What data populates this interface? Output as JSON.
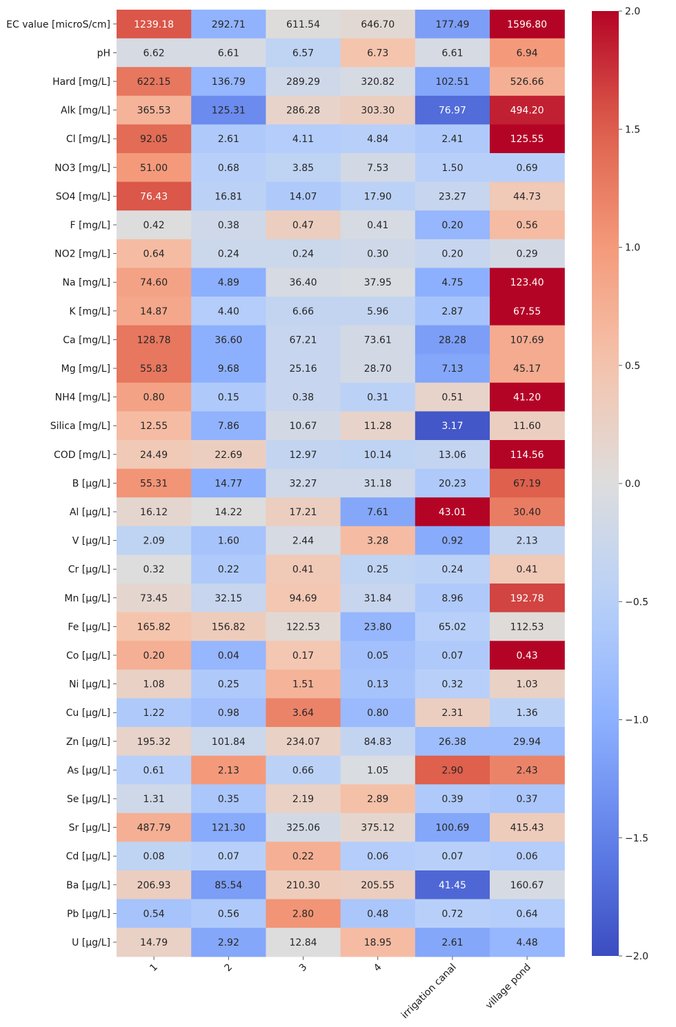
{
  "chart_data": {
    "type": "heatmap",
    "colormap": "coolwarm",
    "colorbar": {
      "vmin": -2.0,
      "vmax": 2.0,
      "ticks": [
        "2.0",
        "1.5",
        "1.0",
        "0.5",
        "0.0",
        "−0.5",
        "−1.0",
        "−1.5",
        "−2.0"
      ]
    },
    "columns": [
      "1",
      "2",
      "3",
      "4",
      "irrigation canal",
      "village pond"
    ],
    "rows": [
      {
        "label": "EC value [microS/cm]",
        "values": [
          "1239.18",
          "292.71",
          "611.54",
          "646.70",
          "177.49",
          "1596.80"
        ],
        "z": [
          1.55,
          -0.95,
          0.02,
          0.1,
          -1.2,
          2.2
        ]
      },
      {
        "label": "pH",
        "values": [
          "6.62",
          "6.61",
          "6.57",
          "6.73",
          "6.61",
          "6.94"
        ],
        "z": [
          -0.1,
          -0.1,
          -0.4,
          0.5,
          -0.1,
          1.0
        ]
      },
      {
        "label": "Hard [mg/L]",
        "values": [
          "622.15",
          "136.79",
          "289.29",
          "320.82",
          "102.51",
          "526.66"
        ],
        "z": [
          1.3,
          -0.9,
          -0.2,
          -0.1,
          -1.1,
          0.75
        ]
      },
      {
        "label": "Alk [mg/L]",
        "values": [
          "365.53",
          "125.31",
          "286.28",
          "303.30",
          "76.97",
          "494.20"
        ],
        "z": [
          0.7,
          -1.4,
          0.2,
          0.3,
          -1.7,
          1.85
        ]
      },
      {
        "label": "Cl [mg/L]",
        "values": [
          "92.05",
          "2.61",
          "4.11",
          "4.84",
          "2.41",
          "125.55"
        ],
        "z": [
          1.4,
          -0.6,
          -0.55,
          -0.5,
          -0.6,
          2.3
        ]
      },
      {
        "label": "NO3 [mg/L]",
        "values": [
          "51.00",
          "0.68",
          "3.85",
          "7.53",
          "1.50",
          "0.69"
        ],
        "z": [
          1.0,
          -0.5,
          -0.4,
          -0.15,
          -0.5,
          -0.5
        ]
      },
      {
        "label": "SO4 [mg/L]",
        "values": [
          "76.43",
          "16.81",
          "14.07",
          "17.90",
          "23.27",
          "44.73"
        ],
        "z": [
          1.55,
          -0.45,
          -0.6,
          -0.45,
          -0.3,
          0.4
        ]
      },
      {
        "label": "F [mg/L]",
        "values": [
          "0.42",
          "0.38",
          "0.47",
          "0.41",
          "0.20",
          "0.56"
        ],
        "z": [
          0.0,
          -0.2,
          0.3,
          -0.1,
          -0.9,
          0.6
        ]
      },
      {
        "label": "NO2 [mg/L]",
        "values": [
          "0.64",
          "0.24",
          "0.24",
          "0.30",
          "0.20",
          "0.29"
        ],
        "z": [
          0.6,
          -0.25,
          -0.25,
          -0.2,
          -0.3,
          -0.15
        ]
      },
      {
        "label": "Na [mg/L]",
        "values": [
          "74.60",
          "4.89",
          "36.40",
          "37.95",
          "4.75",
          "123.40"
        ],
        "z": [
          0.9,
          -1.0,
          -0.1,
          -0.05,
          -1.0,
          2.4
        ]
      },
      {
        "label": "K [mg/L]",
        "values": [
          "14.87",
          "4.40",
          "6.66",
          "5.96",
          "2.87",
          "67.55"
        ],
        "z": [
          0.85,
          -0.55,
          -0.35,
          -0.35,
          -0.7,
          2.3
        ]
      },
      {
        "label": "Ca [mg/L]",
        "values": [
          "128.78",
          "36.60",
          "67.21",
          "73.61",
          "28.28",
          "107.69"
        ],
        "z": [
          1.3,
          -1.0,
          -0.3,
          -0.15,
          -1.2,
          0.8
        ]
      },
      {
        "label": "Mg [mg/L]",
        "values": [
          "55.83",
          "9.68",
          "25.16",
          "28.70",
          "7.13",
          "45.17"
        ],
        "z": [
          1.3,
          -1.0,
          -0.3,
          -0.15,
          -1.1,
          0.8
        ]
      },
      {
        "label": "NH4 [mg/L]",
        "values": [
          "0.80",
          "0.15",
          "0.38",
          "0.31",
          "0.51",
          "41.20"
        ],
        "z": [
          0.9,
          -0.6,
          -0.3,
          -0.45,
          0.2,
          2.3
        ]
      },
      {
        "label": "Silica [mg/L]",
        "values": [
          "12.55",
          "7.86",
          "10.67",
          "11.28",
          "3.17",
          "11.60"
        ],
        "z": [
          0.6,
          -0.95,
          -0.15,
          0.2,
          -1.9,
          0.3
        ]
      },
      {
        "label": "COD [mg/L]",
        "values": [
          "24.49",
          "22.69",
          "12.97",
          "10.14",
          "13.06",
          "114.56"
        ],
        "z": [
          0.4,
          0.3,
          -0.35,
          -0.4,
          -0.35,
          2.2
        ]
      },
      {
        "label": "B  [µg/L]",
        "values": [
          "55.31",
          "14.77",
          "32.27",
          "31.18",
          "20.23",
          "67.19"
        ],
        "z": [
          1.05,
          -1.0,
          -0.2,
          -0.2,
          -0.6,
          1.5
        ]
      },
      {
        "label": "Al [µg/L]",
        "values": [
          "16.12",
          "14.22",
          "17.21",
          "7.61",
          "43.01",
          "30.40"
        ],
        "z": [
          0.15,
          0.0,
          0.3,
          -1.1,
          2.1,
          1.25
        ]
      },
      {
        "label": "V [µg/L]",
        "values": [
          "2.09",
          "1.60",
          "2.44",
          "3.28",
          "0.92",
          "2.13"
        ],
        "z": [
          -0.4,
          -0.7,
          -0.1,
          0.6,
          -1.05,
          -0.35
        ]
      },
      {
        "label": "Cr [µg/L]",
        "values": [
          "0.32",
          "0.22",
          "0.41",
          "0.25",
          "0.24",
          "0.41"
        ],
        "z": [
          0.0,
          -0.6,
          0.4,
          -0.4,
          -0.45,
          0.4
        ]
      },
      {
        "label": "Mn [µg/L]",
        "values": [
          "73.45",
          "32.15",
          "94.69",
          "31.84",
          "8.96",
          "192.78"
        ],
        "z": [
          0.15,
          -0.3,
          0.45,
          -0.3,
          -0.6,
          1.65
        ]
      },
      {
        "label": "Fe [µg/L]",
        "values": [
          "165.82",
          "156.82",
          "122.53",
          "23.80",
          "65.02",
          "112.53"
        ],
        "z": [
          0.5,
          0.35,
          0.1,
          -0.9,
          -0.5,
          0.05
        ]
      },
      {
        "label": "Co [µg/L]",
        "values": [
          "0.20",
          "0.04",
          "0.17",
          "0.05",
          "0.07",
          "0.43"
        ],
        "z": [
          0.75,
          -0.9,
          0.45,
          -0.75,
          -0.6,
          2.2
        ]
      },
      {
        "label": "Ni [µg/L]",
        "values": [
          "1.08",
          "0.25",
          "1.51",
          "0.13",
          "0.32",
          "1.03"
        ],
        "z": [
          0.25,
          -0.6,
          0.7,
          -0.7,
          -0.5,
          0.25
        ]
      },
      {
        "label": "Cu [µg/L]",
        "values": [
          "1.22",
          "0.98",
          "3.64",
          "0.80",
          "2.31",
          "1.36"
        ],
        "z": [
          -0.6,
          -0.75,
          1.2,
          -0.85,
          0.3,
          -0.45
        ]
      },
      {
        "label": "Zn [µg/L]",
        "values": [
          "195.32",
          "101.84",
          "234.07",
          "84.83",
          "26.38",
          "29.94"
        ],
        "z": [
          0.2,
          -0.25,
          0.25,
          -0.35,
          -0.8,
          -0.8
        ]
      },
      {
        "label": "As [µg/L]",
        "values": [
          "0.61",
          "2.13",
          "0.66",
          "1.05",
          "2.90",
          "2.43"
        ],
        "z": [
          -0.5,
          1.0,
          -0.45,
          -0.05,
          1.5,
          1.2
        ]
      },
      {
        "label": "Se [µg/L]",
        "values": [
          "1.31",
          "0.35",
          "2.19",
          "2.89",
          "0.39",
          "0.37"
        ],
        "z": [
          -0.2,
          -0.65,
          0.25,
          0.55,
          -0.6,
          -0.65
        ]
      },
      {
        "label": "Sr [µg/L]",
        "values": [
          "487.79",
          "121.30",
          "325.06",
          "375.12",
          "100.69",
          "415.43"
        ],
        "z": [
          0.75,
          -1.05,
          -0.15,
          0.15,
          -1.1,
          0.35
        ]
      },
      {
        "label": "Cd [µg/L]",
        "values": [
          "0.08",
          "0.07",
          "0.22",
          "0.06",
          "0.07",
          "0.06"
        ],
        "z": [
          -0.4,
          -0.5,
          0.75,
          -0.55,
          -0.5,
          -0.55
        ]
      },
      {
        "label": "Ba [µg/L]",
        "values": [
          "206.93",
          "85.54",
          "210.30",
          "205.55",
          "41.45",
          "160.67"
        ],
        "z": [
          0.3,
          -1.2,
          0.35,
          0.3,
          -1.75,
          -0.1
        ]
      },
      {
        "label": "Pb [µg/L]",
        "values": [
          "0.54",
          "0.56",
          "2.80",
          "0.48",
          "0.72",
          "0.64"
        ],
        "z": [
          -0.7,
          -0.6,
          1.05,
          -0.65,
          -0.5,
          -0.55
        ]
      },
      {
        "label": "U [µg/L]",
        "values": [
          "14.79",
          "2.92",
          "12.84",
          "18.95",
          "2.61",
          "4.48"
        ],
        "z": [
          0.25,
          -1.1,
          0.0,
          0.6,
          -1.1,
          -0.9
        ]
      }
    ]
  }
}
